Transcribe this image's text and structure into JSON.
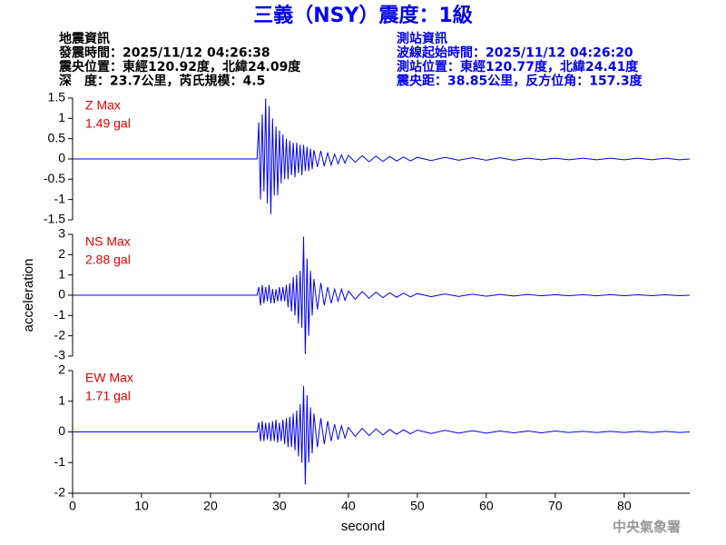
{
  "header": {
    "title": "三義（NSY）震度：1級",
    "left": [
      "地震資訊",
      "發震時間：2025/11/12 04:26:38",
      "震央位置：東經120.92度，北緯24.09度",
      "深　度：23.7公里，芮氏規模：4.5"
    ],
    "right": [
      "測站資訊",
      "波線起始時間：2025/11/12 04:26:20",
      "測站位置：東經120.77度，北緯24.41度",
      "震央距：38.85公里，反方位角：157.3度"
    ]
  },
  "footer": "中央氣象署",
  "chart_data": [
    {
      "type": "line",
      "title": "Z Max",
      "annotation": "1.49 gal",
      "color": "#0000ff",
      "xlim": [
        0,
        89.5
      ],
      "ylim": [
        -1.5,
        1.5
      ],
      "yticks": [
        -1.5,
        -1,
        -0.5,
        0,
        0.5,
        1,
        1.5
      ],
      "x": [
        0,
        26.75,
        27,
        27.25,
        27.5,
        27.75,
        28,
        28.25,
        28.5,
        28.75,
        29,
        29.25,
        29.5,
        29.75,
        30,
        30.25,
        30.5,
        30.75,
        31,
        31.25,
        31.5,
        31.75,
        32,
        32.25,
        32.5,
        32.75,
        33,
        33.25,
        33.5,
        33.75,
        34,
        34.25,
        34.5,
        34.75,
        35,
        35.5,
        36,
        36.5,
        37,
        37.5,
        38,
        38.5,
        39,
        39.5,
        40,
        41,
        42,
        43,
        44,
        45,
        46,
        47,
        48,
        49,
        50,
        52,
        54,
        56,
        58,
        60,
        62,
        64,
        66,
        68,
        70,
        72,
        74,
        76,
        78,
        80,
        82,
        84,
        86,
        88,
        89.5
      ],
      "values": [
        0,
        0,
        0.9,
        -1.0,
        1.1,
        -0.8,
        1.49,
        -1.1,
        1.3,
        -1.36,
        1.0,
        -0.9,
        0.8,
        -0.9,
        0.7,
        -0.6,
        0.6,
        -0.5,
        0.5,
        -0.5,
        0.45,
        -0.4,
        0.4,
        -0.45,
        0.4,
        -0.35,
        0.35,
        -0.4,
        0.35,
        -0.3,
        0.3,
        -0.3,
        0.25,
        -0.25,
        0.22,
        -0.2,
        0.2,
        -0.18,
        0.15,
        -0.15,
        0.12,
        -0.12,
        0.1,
        -0.1,
        0.09,
        -0.08,
        0.08,
        -0.07,
        0.07,
        -0.06,
        0.06,
        -0.05,
        0.05,
        -0.05,
        0.04,
        -0.04,
        0.04,
        -0.03,
        0.03,
        -0.03,
        0.03,
        -0.03,
        0.02,
        -0.02,
        0.02,
        -0.02,
        0.02,
        -0.02,
        0.02,
        -0.02,
        0.02,
        -0.02,
        0.02,
        -0.02,
        0
      ]
    },
    {
      "type": "line",
      "title": "NS Max",
      "annotation": "2.88 gal",
      "color": "#0000ff",
      "ylabel": "acceleration",
      "xlim": [
        0,
        89.5
      ],
      "ylim": [
        -3,
        3
      ],
      "yticks": [
        -3,
        -2,
        -1,
        0,
        1,
        2,
        3
      ],
      "x": [
        0,
        26.75,
        27,
        27.25,
        27.5,
        27.75,
        28,
        28.25,
        28.5,
        28.75,
        29,
        29.25,
        29.5,
        29.75,
        30,
        30.25,
        30.5,
        30.75,
        31,
        31.25,
        31.5,
        31.75,
        32,
        32.25,
        32.5,
        32.75,
        33,
        33.25,
        33.5,
        33.75,
        34,
        34.25,
        34.5,
        34.75,
        35,
        35.5,
        36,
        36.5,
        37,
        37.5,
        38,
        38.5,
        39,
        39.5,
        40,
        41,
        42,
        43,
        44,
        45,
        46,
        47,
        48,
        49,
        50,
        52,
        54,
        56,
        58,
        60,
        62,
        64,
        66,
        68,
        70,
        72,
        74,
        76,
        78,
        80,
        82,
        84,
        86,
        88,
        89.5
      ],
      "values": [
        0,
        0,
        0.4,
        -0.5,
        0.5,
        -0.4,
        0.4,
        -0.3,
        0.5,
        -0.4,
        0.3,
        -0.4,
        0.3,
        -0.3,
        0.4,
        -0.3,
        0.4,
        -0.3,
        0.5,
        -0.6,
        0.6,
        -0.8,
        0.9,
        -1.0,
        1.0,
        -1.4,
        1.2,
        -1.6,
        2.88,
        -2.9,
        1.8,
        -2.0,
        1.2,
        -1.0,
        0.8,
        -0.7,
        0.6,
        -0.5,
        0.4,
        -0.4,
        0.3,
        -0.3,
        0.3,
        -0.25,
        0.2,
        -0.2,
        0.18,
        -0.15,
        0.15,
        -0.12,
        0.12,
        -0.1,
        0.1,
        -0.08,
        0.08,
        -0.07,
        0.06,
        -0.06,
        0.05,
        -0.05,
        0.04,
        -0.04,
        0.04,
        -0.03,
        0.03,
        -0.03,
        0.03,
        -0.03,
        0.03,
        -0.02,
        0.02,
        -0.02,
        0.02,
        -0.02,
        0
      ]
    },
    {
      "type": "line",
      "title": "EW Max",
      "annotation": "1.71 gal",
      "color": "#0000ff",
      "xlabel": "second",
      "xlim": [
        0,
        89.5
      ],
      "xticks": [
        0,
        10,
        20,
        30,
        40,
        50,
        60,
        70,
        80
      ],
      "ylim": [
        -2,
        2
      ],
      "yticks": [
        -2,
        -1,
        0,
        1,
        2
      ],
      "x": [
        0,
        26.75,
        27,
        27.25,
        27.5,
        27.75,
        28,
        28.25,
        28.5,
        28.75,
        29,
        29.25,
        29.5,
        29.75,
        30,
        30.25,
        30.5,
        30.75,
        31,
        31.25,
        31.5,
        31.75,
        32,
        32.25,
        32.5,
        32.75,
        33,
        33.25,
        33.5,
        33.75,
        34,
        34.25,
        34.5,
        34.75,
        35,
        35.5,
        36,
        36.5,
        37,
        37.5,
        38,
        38.5,
        39,
        39.5,
        40,
        41,
        42,
        43,
        44,
        45,
        46,
        47,
        48,
        49,
        50,
        52,
        54,
        56,
        58,
        60,
        62,
        64,
        66,
        68,
        70,
        72,
        74,
        76,
        78,
        80,
        82,
        84,
        86,
        88,
        89.5
      ],
      "values": [
        0,
        0,
        0.3,
        -0.3,
        0.35,
        -0.3,
        0.3,
        -0.25,
        0.3,
        -0.3,
        0.35,
        -0.3,
        0.4,
        -0.35,
        0.3,
        -0.3,
        0.4,
        -0.4,
        0.45,
        -0.5,
        0.5,
        -0.5,
        0.6,
        -0.6,
        0.7,
        -0.8,
        0.9,
        -1.0,
        1.5,
        -1.71,
        1.2,
        -1.0,
        0.8,
        -0.7,
        0.6,
        -0.5,
        0.45,
        -0.4,
        0.35,
        -0.3,
        0.25,
        -0.25,
        0.2,
        -0.2,
        0.15,
        -0.15,
        0.12,
        -0.12,
        0.1,
        -0.1,
        0.08,
        -0.08,
        0.07,
        -0.06,
        0.06,
        -0.05,
        0.05,
        -0.04,
        0.04,
        -0.04,
        0.03,
        -0.03,
        0.03,
        -0.03,
        0.03,
        -0.02,
        0.02,
        -0.02,
        0.02,
        -0.02,
        0.02,
        -0.02,
        0.02,
        -0.02,
        0
      ]
    }
  ]
}
